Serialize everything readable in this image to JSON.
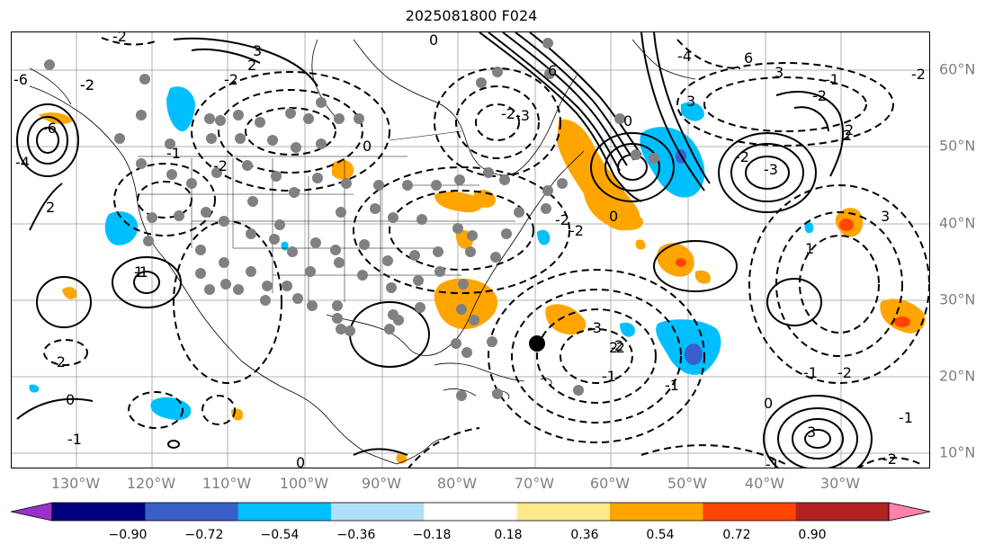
{
  "title": "2025081800 F024",
  "map": {
    "lon_labels": [
      "130°W",
      "120°W",
      "110°W",
      "100°W",
      "90°W",
      "80°W",
      "70°W",
      "60°W",
      "50°W",
      "40°W",
      "30°W"
    ],
    "lat_labels": [
      "60°N",
      "50°N",
      "40°N",
      "30°N",
      "20°N",
      "10°N"
    ],
    "contour_labels": [
      "-2",
      "3",
      "2",
      "-2",
      "6",
      "-6",
      "-4",
      "-2",
      "-1",
      "-2",
      "0",
      "-1",
      "2",
      "-2",
      "0",
      "-2",
      "-3",
      "-2",
      "-4",
      "-2",
      "-1",
      "-2",
      "3",
      "6",
      "2",
      "0",
      "-2",
      "0",
      "3",
      "-6",
      "2",
      "3",
      "1",
      "-2",
      "-3",
      "-2",
      "-1",
      "-2",
      "3",
      "-1",
      "0",
      "-1",
      "-2",
      "-1",
      "0",
      "-2",
      "-1",
      "1",
      "2",
      "-3",
      "-1",
      "2",
      "0"
    ]
  },
  "colorbar": {
    "tick_labels": [
      "−0.90",
      "−0.72",
      "−0.54",
      "−0.36",
      "−0.18",
      "0.18",
      "0.36",
      "0.54",
      "0.72",
      "0.90"
    ],
    "colors": [
      "#9932cc",
      "#000080",
      "#3a5fcd",
      "#00bfff",
      "#b0e0f8",
      "#ffffff",
      "#ffe98a",
      "#ffa500",
      "#ff4500",
      "#b22222",
      "#ff82ab"
    ]
  },
  "colors": {
    "orange": "#ffa500",
    "red": "#ff4500",
    "cyan": "#00bfff",
    "blue": "#3a5fcd",
    "gray_dot": "#808080",
    "grid": "#b0b0b0",
    "axis_label": "#7f7f7f"
  }
}
